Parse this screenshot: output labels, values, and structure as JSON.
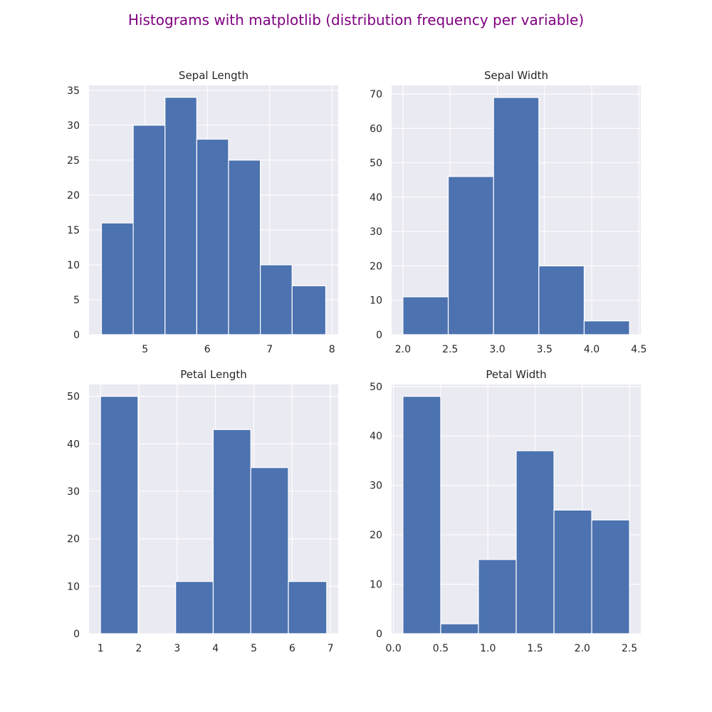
{
  "figure": {
    "title": "Histograms with matplotlib (distribution frequency per variable)",
    "title_color": "#800080",
    "bar_color": "#4c72b0",
    "background_color": "#eaeaf2"
  },
  "chart_data": [
    {
      "type": "bar",
      "title": "Sepal Length",
      "bin_edges": [
        4.3,
        4.81,
        5.32,
        5.83,
        6.34,
        6.85,
        7.36,
        7.9
      ],
      "values": [
        16,
        30,
        34,
        28,
        25,
        10,
        7
      ],
      "xlim": [
        4.1,
        8.1
      ],
      "ylim": [
        0,
        35.7
      ],
      "xticks": [
        5,
        6,
        7,
        8
      ],
      "yticks": [
        0,
        5,
        10,
        15,
        20,
        25,
        30,
        35
      ],
      "grid": true
    },
    {
      "type": "bar",
      "title": "Sepal Width",
      "bin_edges": [
        2.0,
        2.48,
        2.96,
        3.44,
        3.92,
        4.4
      ],
      "values": [
        11,
        46,
        69,
        20,
        4
      ],
      "xlim": [
        1.88,
        4.52
      ],
      "ylim": [
        0,
        72.5
      ],
      "xticks": [
        2.0,
        2.5,
        3.0,
        3.5,
        4.0,
        4.5
      ],
      "yticks": [
        0,
        10,
        20,
        30,
        40,
        50,
        60,
        70
      ],
      "grid": true
    },
    {
      "type": "bar",
      "title": "Petal Length",
      "bin_edges": [
        1.0,
        1.98,
        2.96,
        3.94,
        4.92,
        5.9,
        6.9
      ],
      "values": [
        50,
        0,
        11,
        43,
        35,
        11
      ],
      "xlim": [
        0.7,
        7.2
      ],
      "ylim": [
        0,
        52.5
      ],
      "xticks": [
        1,
        2,
        3,
        4,
        5,
        6,
        7
      ],
      "yticks": [
        0,
        10,
        20,
        30,
        40,
        50
      ],
      "grid": true
    },
    {
      "type": "bar",
      "title": "Petal Width",
      "bin_edges": [
        0.1,
        0.5,
        0.9,
        1.3,
        1.7,
        2.1,
        2.5
      ],
      "values": [
        48,
        2,
        15,
        37,
        25,
        23
      ],
      "xlim": [
        -0.02,
        2.62
      ],
      "ylim": [
        0,
        50.4
      ],
      "xticks": [
        0.0,
        0.5,
        1.0,
        1.5,
        2.0,
        2.5
      ],
      "yticks": [
        0,
        10,
        20,
        30,
        40,
        50
      ],
      "grid": true
    }
  ]
}
